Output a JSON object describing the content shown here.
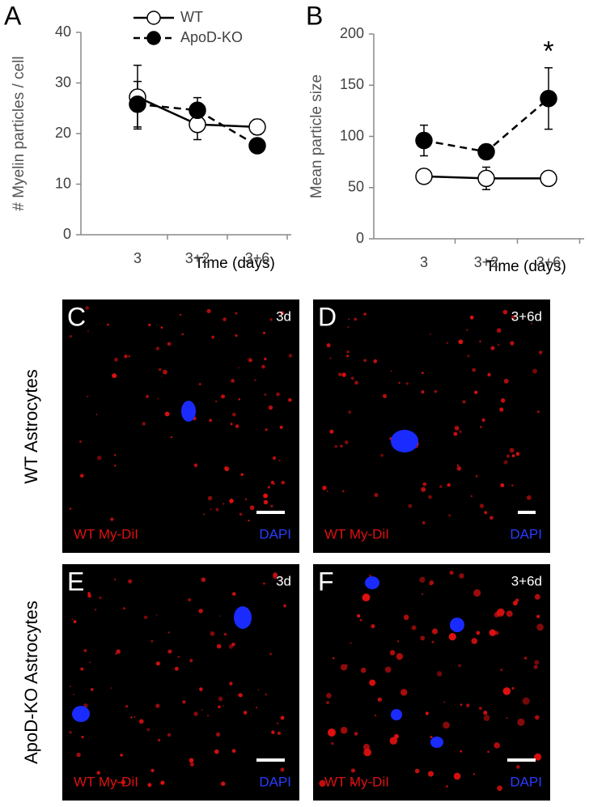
{
  "chart_data": [
    {
      "type": "line",
      "letter": "A",
      "ylabel": "# Myelin particles / cell",
      "xlabel": "Time (days)",
      "categories": [
        "3",
        "3+2",
        "3+6"
      ],
      "ylim": [
        0,
        40
      ],
      "yticks": [
        0,
        10,
        20,
        30,
        40
      ],
      "legend": "top",
      "series": [
        {
          "name": "WT",
          "color": "#000000",
          "marker_fill": "#ffffff",
          "dashed": false,
          "values": [
            27.2,
            21.8,
            21.3
          ],
          "errors": [
            6.3,
            3,
            1.5
          ]
        },
        {
          "name": "ApoD-KO",
          "color": "#000000",
          "marker_fill": "#000000",
          "dashed": true,
          "values": [
            25.8,
            24.6,
            17.6
          ],
          "errors": [
            4.5,
            2.5,
            1
          ]
        }
      ]
    },
    {
      "type": "line",
      "letter": "B",
      "ylabel": "Mean particle size",
      "xlabel": "Time (days)",
      "categories": [
        "3",
        "3+2",
        "3+6"
      ],
      "ylim": [
        0,
        200
      ],
      "yticks": [
        0,
        50,
        100,
        150,
        200
      ],
      "annotation": {
        "text": "*",
        "category": 2
      },
      "series": [
        {
          "color": "#000000",
          "marker_fill": "#ffffff",
          "dashed": false,
          "values": [
            61,
            59,
            59
          ],
          "errors": [
            3,
            11,
            2
          ]
        },
        {
          "color": "#000000",
          "marker_fill": "#000000",
          "dashed": true,
          "values": [
            96,
            85,
            137
          ],
          "errors": [
            15,
            3,
            30
          ]
        }
      ]
    }
  ],
  "row_labels": [
    "WT Astrocytes",
    "ApoD-KO Astrocytes"
  ],
  "panels": [
    {
      "letter": "C",
      "time": "3d",
      "dye": "WT My-DiI",
      "stain": "DAPI"
    },
    {
      "letter": "D",
      "time": "3+6d",
      "dye": "WT My-DiI",
      "stain": "DAPI"
    },
    {
      "letter": "E",
      "time": "3d",
      "dye": "WT My-DiI",
      "stain": "DAPI"
    },
    {
      "letter": "F",
      "time": "3+6d",
      "dye": "WT My-DiI",
      "stain": "DAPI"
    }
  ]
}
